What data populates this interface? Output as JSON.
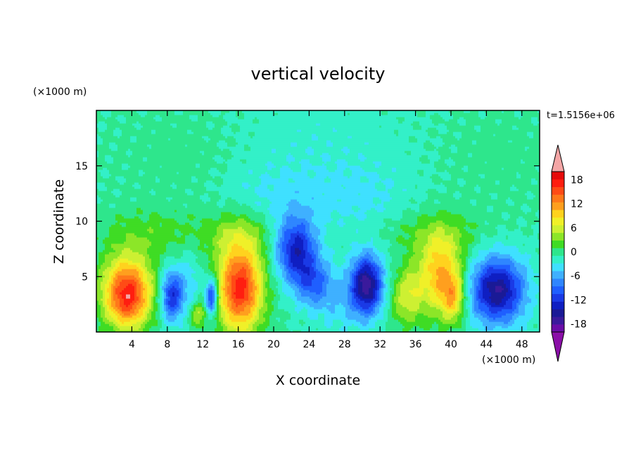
{
  "chart_data": {
    "type": "heatmap",
    "title": "vertical velocity",
    "xlabel": "X coordinate",
    "ylabel": "Z coordinate",
    "x_unit": "(×1000 m)",
    "y_unit": "(×1000 m)",
    "time_label": "t=1.5156e+06",
    "xlim": [
      0,
      50
    ],
    "ylim": [
      0,
      20
    ],
    "x_ticks": [
      4,
      8,
      12,
      16,
      20,
      24,
      28,
      32,
      36,
      40,
      44,
      48
    ],
    "y_ticks": [
      5,
      10,
      15
    ],
    "colorbar": {
      "levels": [
        -20,
        -18,
        -16,
        -14,
        -12,
        -10,
        -8,
        -6,
        -4,
        -2,
        0,
        2,
        4,
        6,
        8,
        10,
        12,
        14,
        16,
        18,
        20
      ],
      "tick_values": [
        18,
        12,
        6,
        0,
        -6,
        -12,
        -18
      ],
      "colors": [
        "#6a0da8",
        "#3a1a9c",
        "#1a1a96",
        "#0f1fc2",
        "#1a3ae6",
        "#1f5fff",
        "#2f86ff",
        "#3fb0ff",
        "#3fe0ff",
        "#33f0c8",
        "#2ee68c",
        "#3fdc24",
        "#8ce628",
        "#cdf032",
        "#f0f028",
        "#ffd21e",
        "#ff9f1e",
        "#ff781a",
        "#ff4b16",
        "#ff1e10",
        "#e60a0a"
      ],
      "over_color": "#f4a6a6",
      "under_color": "#8b0fa8"
    },
    "cells": [
      {
        "x": 3.5,
        "z": 3.8,
        "sx": 2.0,
        "sz": 2.2,
        "w": 17
      },
      {
        "x": 3.5,
        "z": 2.2,
        "sx": 1.5,
        "sz": 1.5,
        "w": 4
      },
      {
        "x": 8.5,
        "z": 3.3,
        "sx": 0.9,
        "sz": 1.6,
        "w": -12
      },
      {
        "x": 10.5,
        "z": 4.5,
        "sx": 1.0,
        "sz": 2.0,
        "w": -3
      },
      {
        "x": 11.5,
        "z": 1.6,
        "sx": 0.7,
        "sz": 0.8,
        "w": 6
      },
      {
        "x": 13.0,
        "z": 3.2,
        "sx": 0.5,
        "sz": 1.2,
        "w": -13
      },
      {
        "x": 16.2,
        "z": 4.0,
        "sx": 1.8,
        "sz": 2.8,
        "w": 19
      },
      {
        "x": 22.5,
        "z": 7.5,
        "sx": 1.6,
        "sz": 2.0,
        "w": -13
      },
      {
        "x": 24.5,
        "z": 4.5,
        "sx": 1.5,
        "sz": 1.6,
        "w": -8
      },
      {
        "x": 27.5,
        "z": 2.5,
        "sx": 1.8,
        "sz": 1.8,
        "w": -3
      },
      {
        "x": 30.5,
        "z": 4.3,
        "sx": 1.3,
        "sz": 1.9,
        "w": -17
      },
      {
        "x": 35.0,
        "z": 3.2,
        "sx": 1.3,
        "sz": 1.8,
        "w": 7
      },
      {
        "x": 38.8,
        "z": 5.2,
        "sx": 1.8,
        "sz": 2.5,
        "w": 12
      },
      {
        "x": 40.3,
        "z": 3.0,
        "sx": 0.9,
        "sz": 1.5,
        "w": 8
      },
      {
        "x": 45.2,
        "z": 3.8,
        "sx": 2.2,
        "sz": 2.1,
        "w": -16
      },
      {
        "x": 6.0,
        "z": 9.0,
        "sx": 4.0,
        "sz": 1.5,
        "w": 3
      },
      {
        "x": 16.0,
        "z": 9.0,
        "sx": 3.0,
        "sz": 1.5,
        "w": 4
      },
      {
        "x": 38.0,
        "z": 9.0,
        "sx": 4.0,
        "sz": 1.5,
        "w": 3
      },
      {
        "x": 25.0,
        "z": 16.0,
        "sx": 8.0,
        "sz": 4.0,
        "w": -1.5
      },
      {
        "x": 10.0,
        "z": 16.0,
        "sx": 5.0,
        "sz": 3.0,
        "w": 1.2
      },
      {
        "x": 45.0,
        "z": 16.0,
        "sx": 5.0,
        "sz": 3.0,
        "w": 1.0
      },
      {
        "x": 20.0,
        "z": 12.0,
        "sx": 4.0,
        "sz": 2.0,
        "w": -2.0
      },
      {
        "x": 30.0,
        "z": 12.0,
        "sx": 4.0,
        "sz": 2.0,
        "w": -2.0
      }
    ]
  }
}
